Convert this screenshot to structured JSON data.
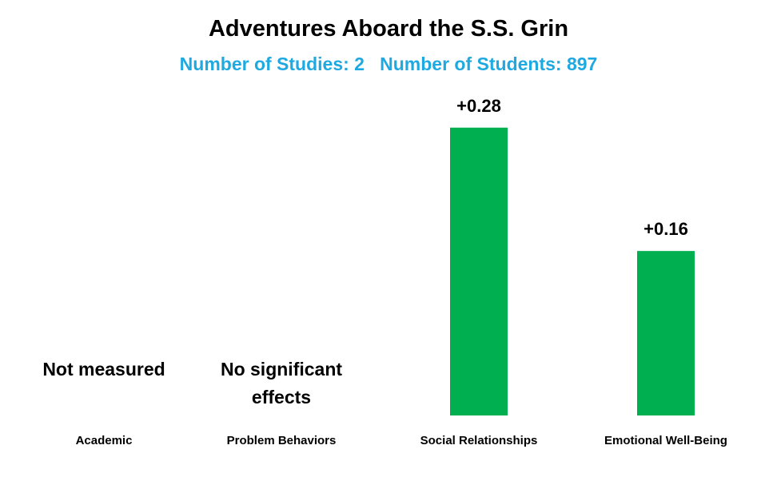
{
  "chart_data": {
    "type": "bar",
    "title": "Adventures Aboard the S.S. Grin",
    "subtitle": "Number of Studies: 2   Number of Students: 897",
    "categories": [
      "Academic",
      "Problem Behaviors",
      "Social Relationships",
      "Emotional Well-Being"
    ],
    "values": [
      null,
      null,
      0.28,
      0.16
    ],
    "value_labels": [
      null,
      null,
      "+0.28",
      "+0.16"
    ],
    "annotations": [
      "Not measured",
      "No significant effects",
      null,
      null
    ],
    "color": "#00b050",
    "ylim": [
      0,
      0.3
    ]
  }
}
